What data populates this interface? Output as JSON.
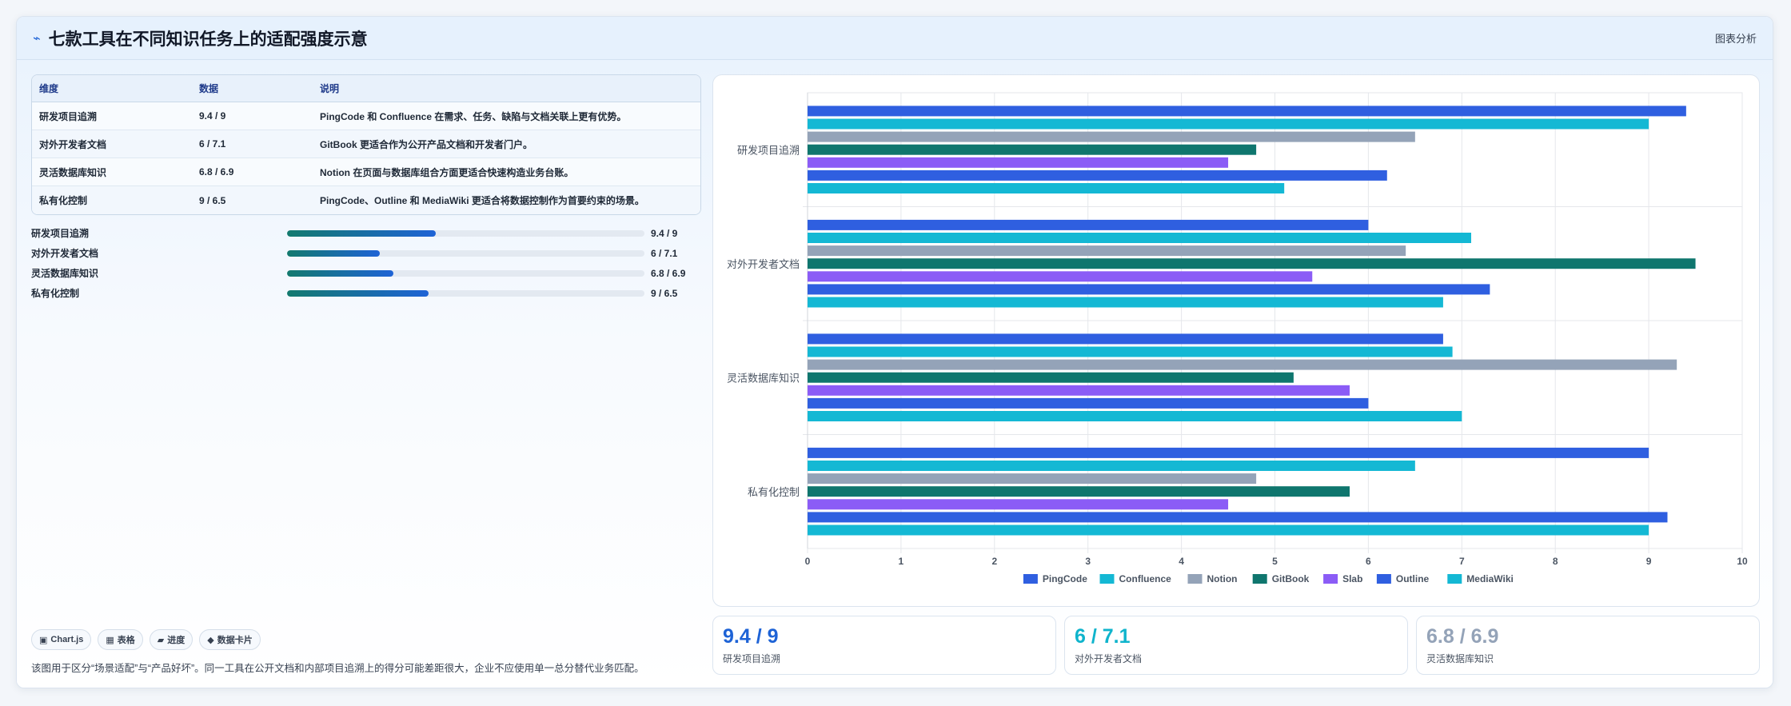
{
  "header": {
    "title": "七款工具在不同知识任务上的适配强度示意",
    "action_label": "图表分析"
  },
  "table": {
    "headers": [
      "维度",
      "数据",
      "说明"
    ],
    "rows": [
      {
        "dim": "研发项目追溯",
        "data": "9.4 / 9",
        "desc": "PingCode 和 Confluence 在需求、任务、缺陷与文档关联上更有优势。"
      },
      {
        "dim": "对外开发者文档",
        "data": "6 / 7.1",
        "desc": "GitBook 更适合作为公开产品文档和开发者门户。"
      },
      {
        "dim": "灵活数据库知识",
        "data": "6.8 / 6.9",
        "desc": "Notion 在页面与数据库组合方面更适合快速构造业务台账。"
      },
      {
        "dim": "私有化控制",
        "data": "9 / 6.5",
        "desc": "PingCode、Outline 和 MediaWiki 更适合将数据控制作为首要约束的场景。"
      }
    ]
  },
  "progress": [
    {
      "label": "研发项目追溯",
      "value_text": "9.4 / 9",
      "fraction": 0.415
    },
    {
      "label": "对外开发者文档",
      "value_text": "6 / 7.1",
      "fraction": 0.26
    },
    {
      "label": "灵活数据库知识",
      "value_text": "6.8 / 6.9",
      "fraction": 0.297
    },
    {
      "label": "私有化控制",
      "value_text": "9 / 6.5",
      "fraction": 0.395
    }
  ],
  "chips": [
    {
      "icon": "▣",
      "label": "Chart.js"
    },
    {
      "icon": "▦",
      "label": "表格"
    },
    {
      "icon": "▰",
      "label": "进度"
    },
    {
      "icon": "◆",
      "label": "数据卡片"
    }
  ],
  "note": "该图用于区分“场景适配”与“产品好坏”。同一工具在公开文档和内部项目追溯上的得分可能差距很大，企业不应使用单一总分替代业务匹配。",
  "kpis": [
    {
      "value": "9.4 / 9",
      "label": "研发项目追溯",
      "color": "#1e63d6"
    },
    {
      "value": "6 / 7.1",
      "label": "对外开发者文档",
      "color": "#0fb4cc"
    },
    {
      "value": "6.8 / 6.9",
      "label": "灵活数据库知识",
      "color": "#94a3b8"
    }
  ],
  "chart_data": {
    "type": "bar",
    "orientation": "horizontal",
    "categories": [
      "研发项目追溯",
      "对外开发者文档",
      "灵活数据库知识",
      "私有化控制"
    ],
    "xlim": [
      0,
      10
    ],
    "xticks": [
      0,
      1,
      2,
      3,
      4,
      5,
      6,
      7,
      8,
      9,
      10
    ],
    "grid": true,
    "legend_position": "bottom",
    "series": [
      {
        "name": "PingCode",
        "color": "#2f5fe0",
        "values": [
          9.4,
          6,
          6.8,
          9
        ]
      },
      {
        "name": "Confluence",
        "color": "#14b8d4",
        "values": [
          9,
          7.1,
          6.9,
          6.5
        ]
      },
      {
        "name": "Notion",
        "color": "#94a3b8",
        "values": [
          6.5,
          6.4,
          9.3,
          4.8
        ]
      },
      {
        "name": "GitBook",
        "color": "#0f766e",
        "values": [
          4.8,
          9.5,
          5.2,
          5.8
        ]
      },
      {
        "name": "Slab",
        "color": "#8b5cf6",
        "values": [
          4.5,
          5.4,
          5.8,
          4.5
        ]
      },
      {
        "name": "Outline",
        "color": "#2f5fe0",
        "values": [
          6.2,
          7.3,
          6,
          9.2
        ]
      },
      {
        "name": "MediaWiki",
        "color": "#14b8d4",
        "values": [
          5.1,
          6.8,
          7,
          9
        ]
      }
    ]
  }
}
